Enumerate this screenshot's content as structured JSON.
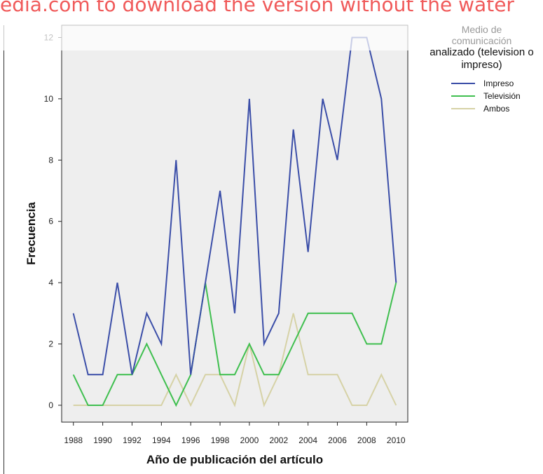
{
  "watermark": "edia.com to download the version without the water",
  "colors": {
    "Impreso": "#3b4ea8",
    "Televisión": "#3fbf4f",
    "Ambos": "#d6d2a6",
    "plot_bg": "#eeeeee"
  },
  "chart_data": {
    "type": "line",
    "xlabel": "Año de publicación del artículo",
    "ylabel": "Frecuencia",
    "x": [
      1988,
      1989,
      1990,
      1991,
      1992,
      1993,
      1994,
      1995,
      1996,
      1997,
      1998,
      1999,
      2000,
      2001,
      2002,
      2003,
      2004,
      2005,
      2006,
      2007,
      2008,
      2009,
      2010
    ],
    "xticks": [
      "1988",
      "1990",
      "1992",
      "1994",
      "1996",
      "1998",
      "2000",
      "2002",
      "2004",
      "2006",
      "2008",
      "2010"
    ],
    "xtick_values": [
      1988,
      1990,
      1992,
      1994,
      1996,
      1998,
      2000,
      2002,
      2004,
      2006,
      2008,
      2010
    ],
    "yticks": [
      "0",
      "2",
      "4",
      "6",
      "8",
      "10",
      "12"
    ],
    "ytick_values": [
      0,
      2,
      4,
      6,
      8,
      10,
      12
    ],
    "ylim": [
      -0.55,
      12.4
    ],
    "xlim": [
      1987.2,
      2010.8
    ],
    "grid": false,
    "legend_position": "right",
    "legend_title_line1": "Medio de",
    "legend_title_line2": "comunicación",
    "legend_title_line3": "analizado (television o",
    "legend_title_line4": "impreso)",
    "series": [
      {
        "name": "Impreso",
        "values": [
          3,
          1,
          1,
          4,
          1,
          3,
          2,
          8,
          1,
          4,
          7,
          3,
          10,
          2,
          3,
          9,
          5,
          10,
          8,
          12,
          12,
          10,
          4
        ]
      },
      {
        "name": "Televisión",
        "values": [
          1,
          0,
          0,
          1,
          1,
          2,
          1,
          0,
          1,
          4,
          1,
          1,
          2,
          1,
          1,
          2,
          3,
          3,
          3,
          3,
          2,
          2,
          4
        ]
      },
      {
        "name": "Ambos",
        "values": [
          0,
          0,
          0,
          0,
          0,
          0,
          0,
          1,
          0,
          1,
          1,
          0,
          2,
          0,
          1,
          3,
          1,
          1,
          1,
          0,
          0,
          1,
          0
        ]
      }
    ]
  }
}
